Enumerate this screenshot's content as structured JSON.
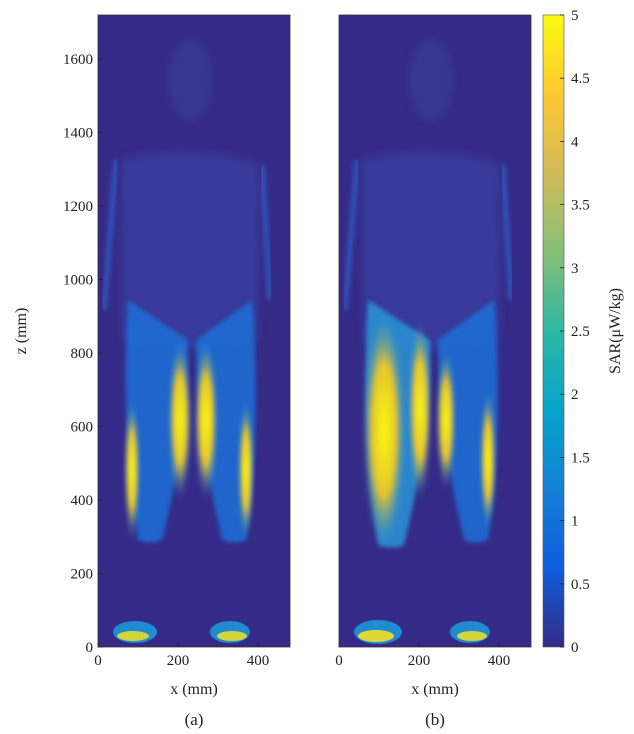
{
  "chart_data": [
    {
      "type": "heatmap",
      "caption": "(a)",
      "xlabel": "x (mm)",
      "ylabel": "z (mm)",
      "xlim": [
        0,
        480
      ],
      "ylim": [
        0,
        1720
      ],
      "xticks": [
        0,
        200,
        400
      ],
      "yticks": [
        0,
        200,
        400,
        600,
        800,
        1000,
        1200,
        1400,
        1600
      ],
      "xtick_labels": [
        "0",
        "200",
        "400"
      ],
      "ytick_labels": [
        "0",
        "200",
        "400",
        "600",
        "800",
        "1000",
        "1200",
        "1400",
        "1600"
      ],
      "colormap": "parula",
      "clim": [
        0,
        5
      ],
      "description_of_field": "SAR distribution on a human body phantom; highest values in the inner thighs and legs"
    },
    {
      "type": "heatmap",
      "caption": "(b)",
      "xlabel": "x (mm)",
      "ylabel": "",
      "xlim": [
        0,
        480
      ],
      "ylim": [
        0,
        1720
      ],
      "xticks": [
        0,
        200,
        400
      ],
      "xtick_labels": [
        "0",
        "200",
        "400"
      ],
      "colormap": "parula",
      "clim": [
        0,
        5
      ],
      "description_of_field": "SAR distribution with higher values across both legs"
    }
  ],
  "colorbar": {
    "label": "SAR(μW/kg)",
    "min": 0,
    "max": 5,
    "ticks": [
      0,
      0.5,
      1,
      1.5,
      2,
      2.5,
      3,
      3.5,
      4,
      4.5,
      5
    ],
    "tick_labels": [
      "0",
      "0.5",
      "1",
      "1.5",
      "2",
      "2.5",
      "3",
      "3.5",
      "4",
      "4.5",
      "5"
    ],
    "colors": [
      "#352a87",
      "#0f5cdd",
      "#1481d6",
      "#06a4ca",
      "#2eb7a4",
      "#87bf77",
      "#d1bb59",
      "#fec832",
      "#f9fb0e"
    ]
  },
  "background_color": "#352a87"
}
